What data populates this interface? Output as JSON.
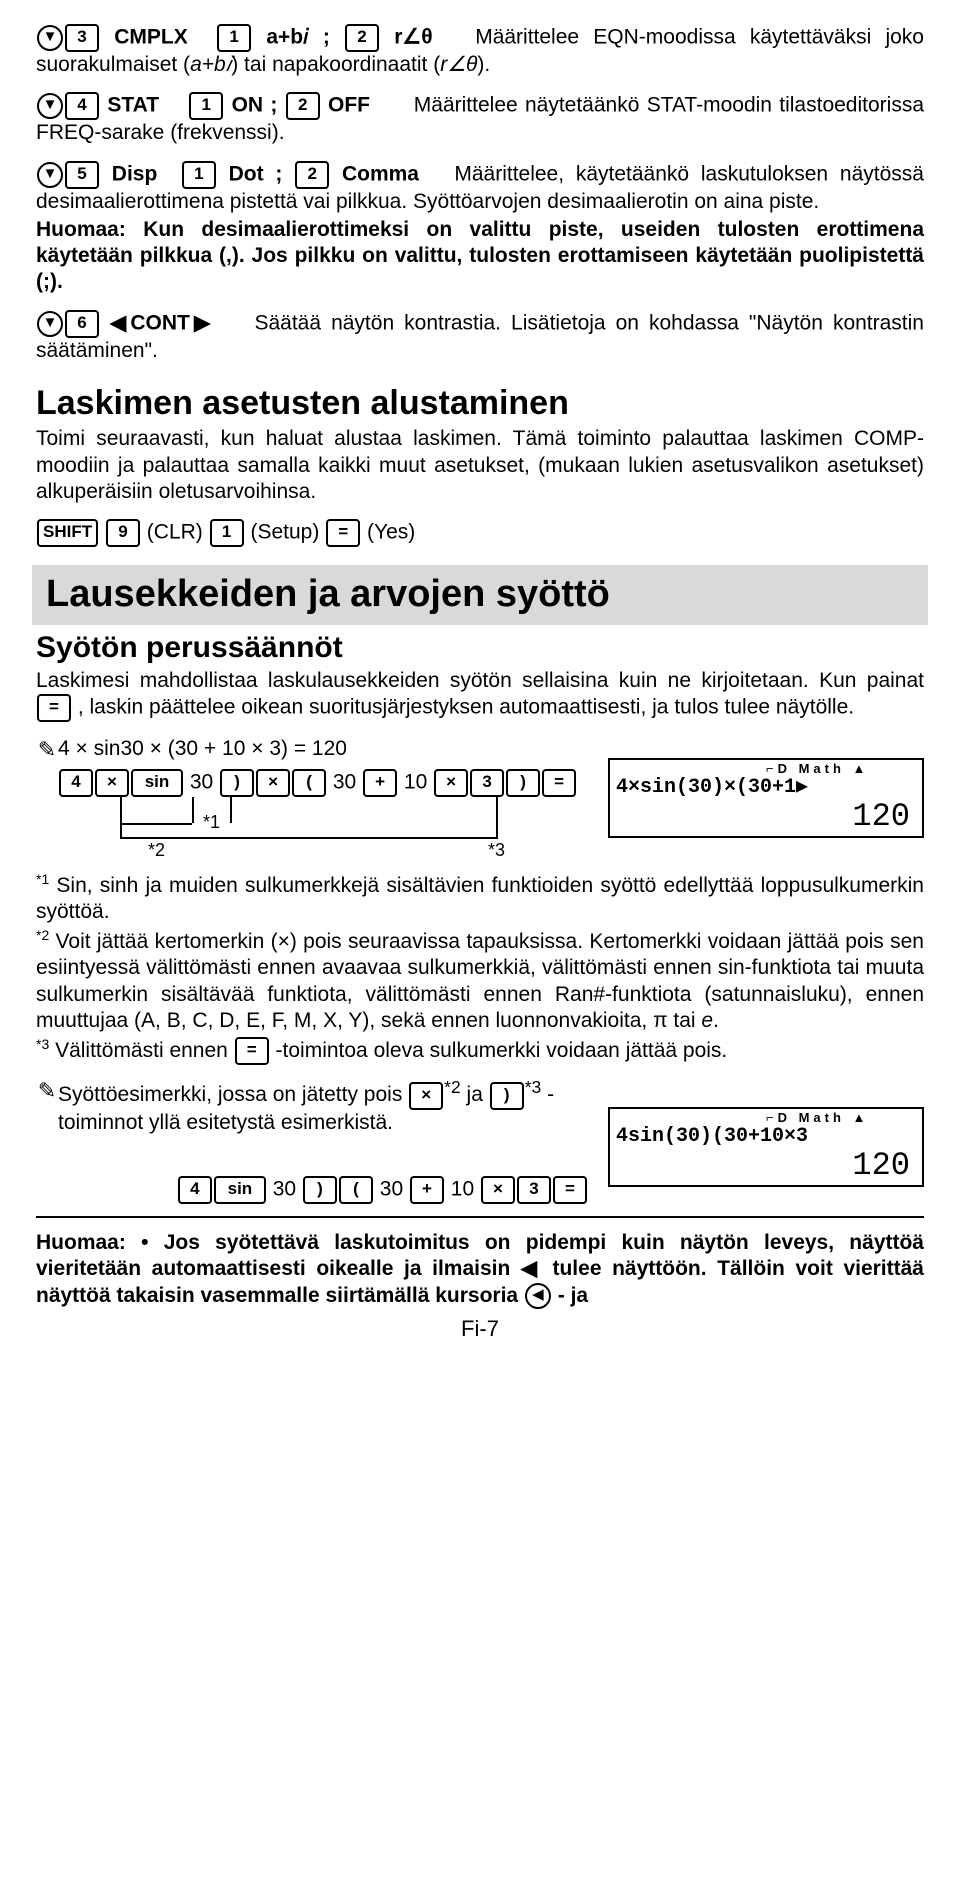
{
  "paragraphs": {
    "cmplx": {
      "prefix_key": "3",
      "label": "CMPLX",
      "opt1_key": "1",
      "opt1": "a+b𝑖 ;",
      "opt2_key": "2",
      "opt2": "r∠θ",
      "rest": "Määrittelee EQN-moodissa käytettäväksi joko suorakulmaiset (",
      "mid_ital1": "a+b𝑖",
      "rest2": ") tai napakoordinaatit (",
      "mid_ital2": "r∠θ",
      "rest3": ")."
    },
    "stat": {
      "prefix_key": "4",
      "label": "STAT",
      "opt1_key": "1",
      "opt1": "ON ;",
      "opt2_key": "2",
      "opt2": "OFF",
      "rest": "Määrittelee näytetäänkö STAT-moodin tilastoeditorissa FREQ-sarake (frekvenssi)."
    },
    "disp": {
      "prefix_key": "5",
      "label": "Disp",
      "opt1_key": "1",
      "opt1": "Dot ;",
      "opt2_key": "2",
      "opt2": "Comma",
      "rest": "Määrittelee, käytetäänkö laskutuloksen näytössä desimaalierottimena pistettä vai pilkkua. Syöttöarvojen desimaalierotin on aina piste."
    },
    "huomaa1": "Huomaa: Kun desimaalierottimeksi on valittu piste, useiden tulosten erottimena käytetään pilkkua (,). Jos pilkku on valittu, tulosten erottamiseen käytetään puolipistettä (;).",
    "cont": {
      "prefix_key": "6",
      "label": "◀CONT▶",
      "rest": "Säätää näytön kontrastia. Lisätietoja on kohdassa \"Näytön kontrastin säätäminen\"."
    }
  },
  "sections": {
    "reset_h": "Laskimen asetusten alustaminen",
    "reset_p": "Toimi seuraavasti, kun haluat alustaa laskimen. Tämä toiminto palauttaa laskimen COMP-moodiin ja palauttaa samalla kaikki muut asetukset, (mukaan lukien asetusvalikon asetukset) alkuperäisiin oletusarvoihinsa.",
    "reset_keys": {
      "k1": "SHIFT",
      "k2": "9",
      "t2": "(CLR)",
      "k3": "1",
      "t3": "(Setup)",
      "k4": "=",
      "t4": "(Yes)"
    },
    "banner": "Lausekkeiden ja arvojen syöttö",
    "subh": "Syötön perussäännöt",
    "subp1a": "Laskimesi mahdollistaa laskulausekkeiden syötön sellaisina kuin ne kirjoitetaan. Kun painat ",
    "subp1b": ", laskin päättelee oikean suoritusjärjestyksen automaattisesti, ja tulos tulee näytölle.",
    "eq_key": "="
  },
  "example1": {
    "expr_text": "4 × sin30 × (30 + 10 × 3) = 120",
    "keys": [
      "4",
      "×",
      "sin",
      "30",
      ")",
      "×",
      "(",
      "30",
      "+",
      "10",
      "×",
      "3",
      ")",
      "="
    ],
    "star1": "*1",
    "star2": "*2",
    "star3": "*3",
    "lcd_top": "⌐D     Math ▲",
    "lcd_expr": "4×sin(30)×(30+1▶",
    "lcd_result": "120"
  },
  "footnotes": {
    "f1": "Sin, sinh ja muiden sulkumerkkejä sisältävien funktioiden syöttö edellyttää loppusulkumerkin syöttöä.",
    "f2a": "Voit jättää kertomerkin (×) pois seuraavissa tapauksissa. Kertomerkki voidaan jättää pois sen esiintyessä välittömästi ennen avaavaa sulkumerkkiä, välittömästi ennen sin-funktiota tai muuta sulkumerkin sisältävää funktiota, välittömästi ennen Ran#-funktiota (satunnaisluku), ennen muuttujaa (A, B, C, D, E, F, M, X, Y), sekä ennen luonnonvakioita, π tai ",
    "f2b": "e",
    "f2c": ".",
    "f3a": "Välittömästi ennen ",
    "f3b": "-toimintoa oleva sulkumerkki voidaan jättää pois.",
    "f3key": "="
  },
  "example2": {
    "intro1": "Syöttöesimerkki, jossa on jätetty pois ",
    "k1": "×",
    "sup1": "*2",
    "mid": " ja ",
    "k2": ")",
    "sup2": "*3",
    "intro2": "-toiminnot yllä esitetystä esimerkistä.",
    "keys_text": [
      "4",
      "sin",
      "30",
      ")",
      "(",
      "30",
      "+",
      "10",
      "×",
      "3",
      "="
    ],
    "lcd_top": "⌐D     Math ▲",
    "lcd_expr": "4sin(30)(30+10×3",
    "lcd_result": "120"
  },
  "bottom": {
    "line1": "Huomaa:  • Jos syötettävä laskutoimitus on pidempi kuin näytön leveys, näyttöä vieritetään automaattisesti oikealle ja ilmaisin ◀ tulee näyttöön. Tällöin voit vierittää näyttöä takaisin vasemmalle siirtämällä kursoria ",
    "arrow": "◀",
    "line2": "- ja"
  },
  "page_num": "Fi-7"
}
